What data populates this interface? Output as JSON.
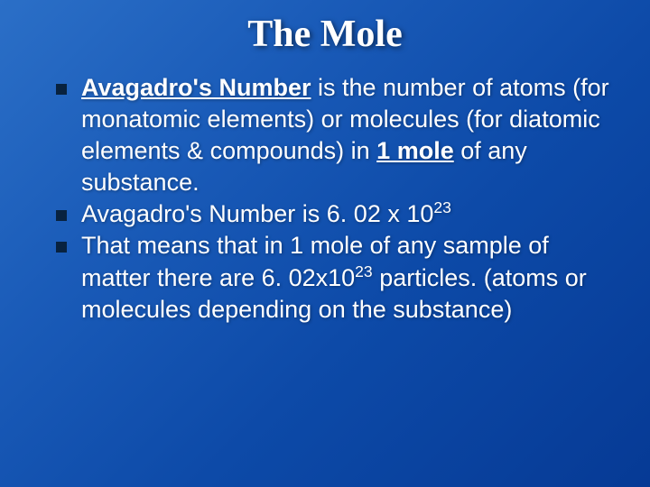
{
  "slide": {
    "title": "The Mole",
    "title_color": "#ffffff",
    "title_fontsize": 42,
    "title_fontfamily": "Georgia",
    "background_gradient": [
      "#2b6fc7",
      "#1a5bb8",
      "#0d4aa8",
      "#063a95"
    ],
    "bullet_marker_color": "#08223f",
    "bullet_marker_size": 12,
    "body_fontsize": 27,
    "body_color": "#ffffff",
    "bullets": [
      {
        "segments": [
          {
            "text": "Avagadro's Number",
            "bold_underline": true
          },
          {
            "text": " is the number of atoms (for monatomic elements) or molecules (for diatomic elements & compounds) in "
          },
          {
            "text": "1 mole",
            "bold_underline": true
          },
          {
            "text": " of any substance."
          }
        ]
      },
      {
        "segments": [
          {
            "text": "Avagadro's Number is 6. 02 x 10"
          },
          {
            "text": "23",
            "sup": true
          }
        ]
      },
      {
        "segments": [
          {
            "text": "That means that in 1 mole of any sample of matter there are 6. 02x10"
          },
          {
            "text": "23",
            "sup": true
          },
          {
            "text": " particles. (atoms or molecules depending on the substance)"
          }
        ]
      }
    ]
  }
}
